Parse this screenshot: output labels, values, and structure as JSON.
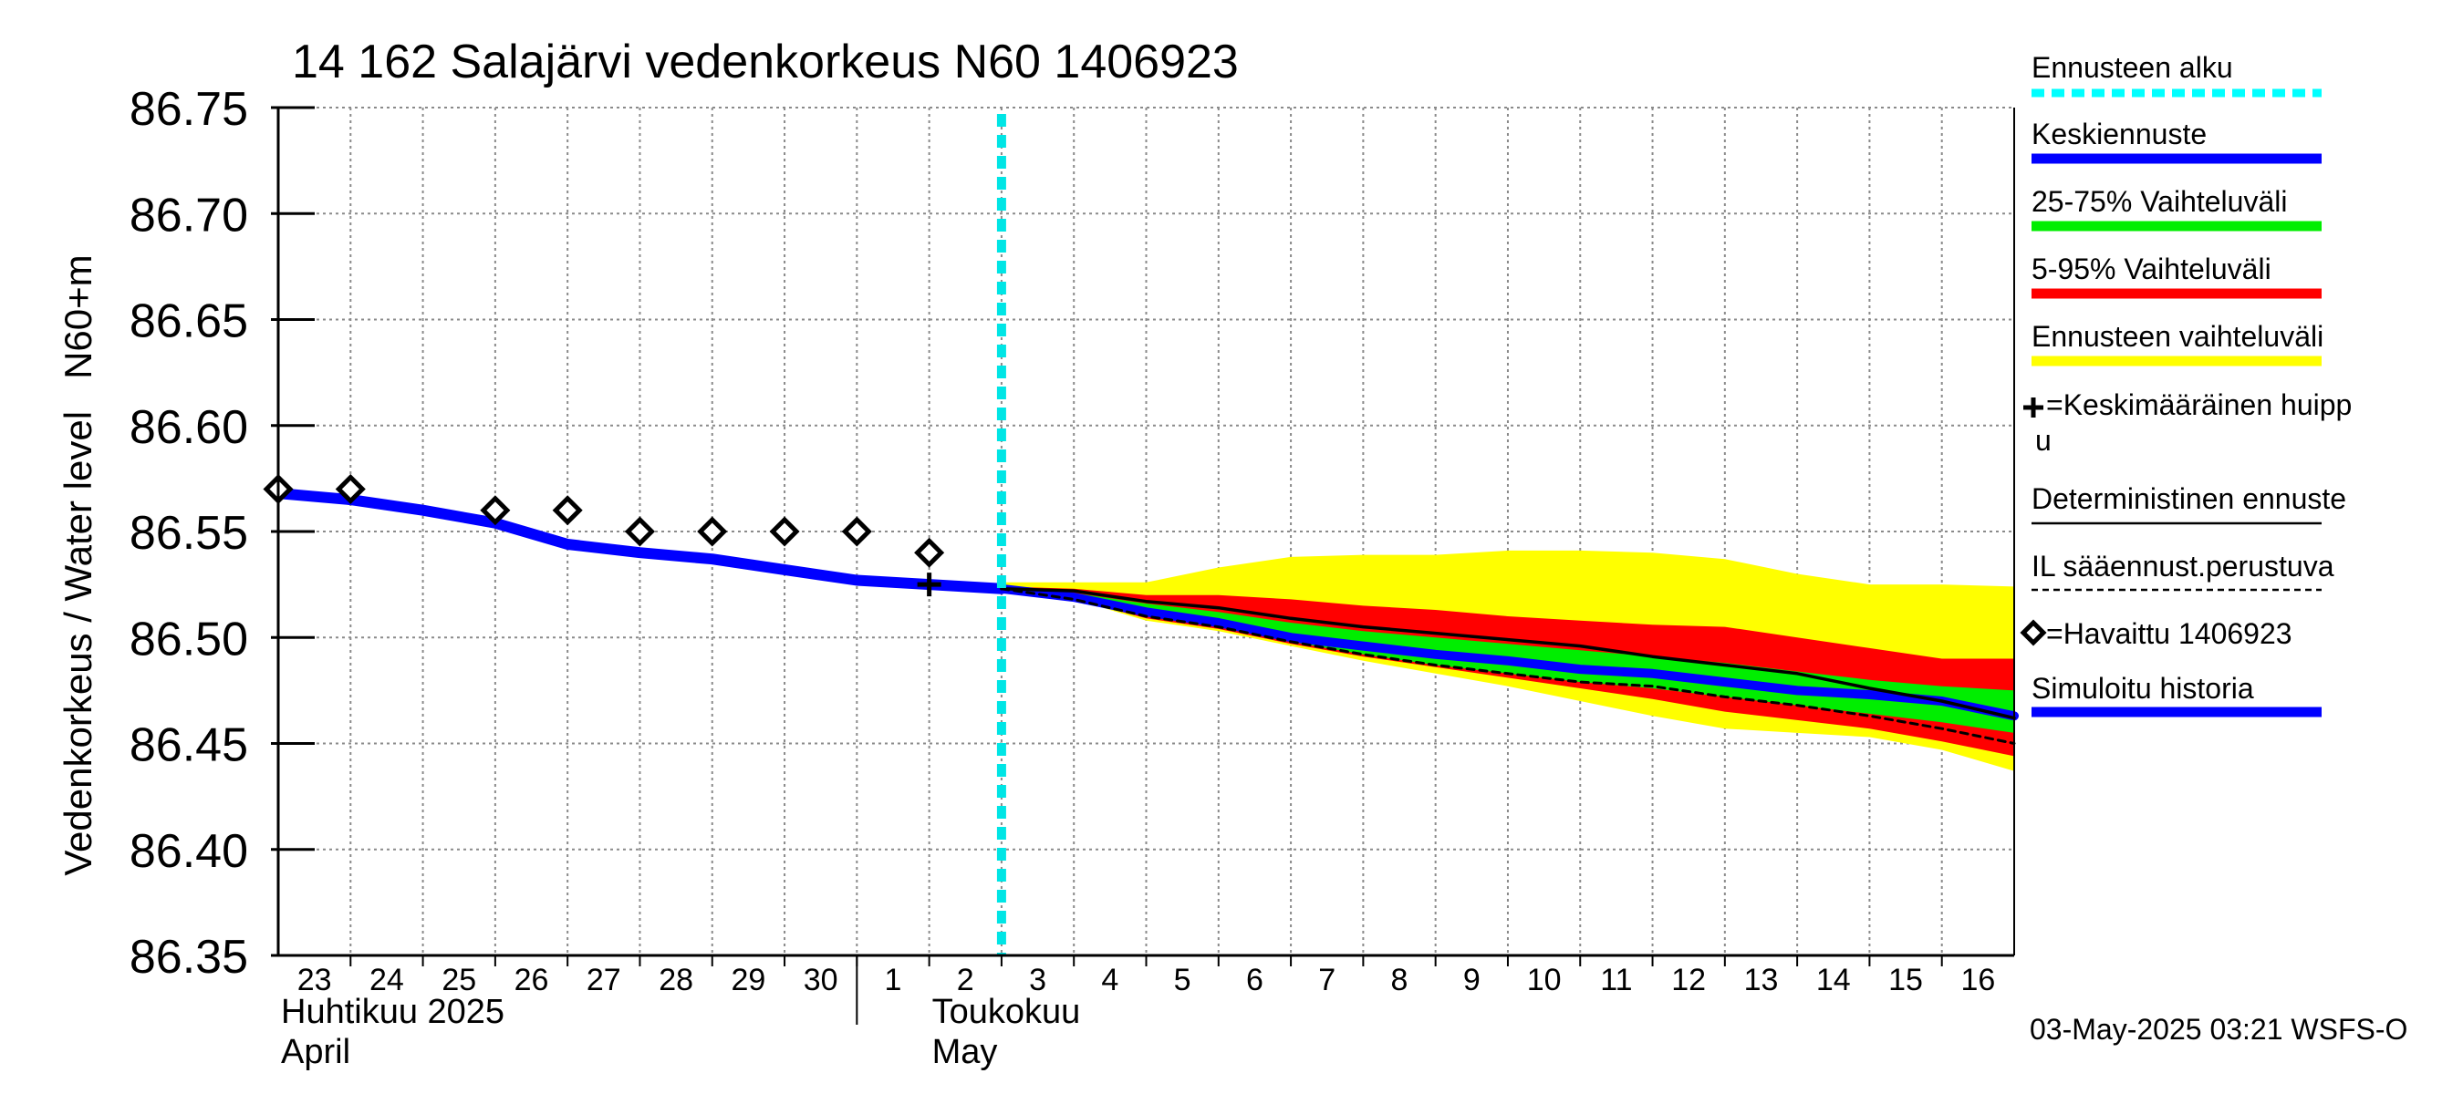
{
  "chart_data": {
    "type": "line",
    "title": "14 162 Salajärvi vedenkorkeus N60 1406923",
    "ylabel": "Vedenkorkeus / Water level   N60+m",
    "ylim": [
      86.35,
      86.75
    ],
    "yticks": [
      "86.35",
      "86.40",
      "86.45",
      "86.50",
      "86.55",
      "86.60",
      "86.65",
      "86.70",
      "86.75"
    ],
    "xlim": [
      0,
      24
    ],
    "x_tick_labels": [
      "23",
      "24",
      "25",
      "26",
      "27",
      "28",
      "29",
      "30",
      "1",
      "2",
      "3",
      "4",
      "5",
      "6",
      "7",
      "8",
      "9",
      "10",
      "11",
      "12",
      "13",
      "14",
      "15",
      "16"
    ],
    "month_labels": [
      {
        "fi": "Huhtikuu  2025",
        "en": "April",
        "x": 0
      },
      {
        "fi": "Toukokuu",
        "en": "May",
        "x": 9
      }
    ],
    "month_divider_x": 8,
    "forecast_start_x": 10,
    "timestamp": "03-May-2025 03:21 WSFS-O",
    "series": [
      {
        "name": "Simuloitu historia",
        "color": "#0000ff",
        "x": [
          0,
          1,
          2,
          3,
          4,
          5,
          6,
          7,
          8,
          9,
          10
        ],
        "y": [
          86.568,
          86.565,
          86.56,
          86.554,
          86.544,
          86.54,
          86.537,
          86.532,
          86.527,
          86.525,
          86.523
        ]
      },
      {
        "name": "Keskiennuste",
        "color": "#0000ff",
        "x": [
          10,
          11,
          12,
          13,
          14,
          15,
          16,
          17,
          18,
          19,
          20,
          21,
          22,
          23,
          24
        ],
        "y": [
          86.523,
          86.519,
          86.512,
          86.507,
          86.5,
          86.496,
          86.492,
          86.489,
          86.485,
          86.483,
          86.479,
          86.475,
          86.473,
          86.47,
          86.463
        ]
      },
      {
        "name": "Deterministinen ennuste",
        "color": "#000000",
        "x": [
          10,
          11,
          12,
          13,
          14,
          15,
          16,
          17,
          18,
          19,
          20,
          21,
          22,
          23,
          24
        ],
        "y": [
          86.523,
          86.522,
          86.517,
          86.514,
          86.509,
          86.505,
          86.502,
          86.499,
          86.496,
          86.491,
          86.487,
          86.483,
          86.476,
          86.47,
          86.462
        ]
      },
      {
        "name": "IL sääennust.perustuva",
        "color": "#000000",
        "x": [
          10,
          11,
          12,
          13,
          14,
          15,
          16,
          17,
          18,
          19,
          20,
          21,
          22,
          23,
          24
        ],
        "y": [
          86.523,
          86.518,
          86.51,
          86.505,
          86.498,
          86.492,
          86.487,
          86.483,
          86.479,
          86.477,
          86.472,
          86.468,
          86.463,
          86.457,
          86.45
        ]
      }
    ],
    "bands": [
      {
        "name": "Ennusteen vaihteluväli",
        "color": "#ffff00",
        "x": [
          10,
          11,
          12,
          13,
          14,
          15,
          16,
          17,
          18,
          19,
          20,
          21,
          22,
          23,
          24
        ],
        "upper": [
          86.526,
          86.526,
          86.526,
          86.533,
          86.538,
          86.539,
          86.539,
          86.541,
          86.541,
          86.54,
          86.537,
          86.53,
          86.525,
          86.525,
          86.524
        ],
        "lower": [
          86.523,
          86.518,
          86.508,
          86.503,
          86.496,
          86.489,
          86.483,
          86.477,
          86.47,
          86.463,
          86.457,
          86.455,
          86.453,
          86.447,
          86.437
        ]
      },
      {
        "name": "5-95% Vaihteluväli",
        "color": "#ff0000",
        "x": [
          10,
          11,
          12,
          13,
          14,
          15,
          16,
          17,
          18,
          19,
          20,
          21,
          22,
          23,
          24
        ],
        "upper": [
          86.524,
          86.523,
          86.52,
          86.52,
          86.518,
          86.515,
          86.513,
          86.51,
          86.508,
          86.506,
          86.505,
          86.5,
          86.495,
          86.49,
          86.49
        ],
        "lower": [
          86.523,
          86.518,
          86.509,
          86.504,
          86.497,
          86.491,
          86.486,
          86.481,
          86.476,
          86.471,
          86.465,
          86.461,
          86.457,
          86.451,
          86.444
        ]
      },
      {
        "name": "25-75% Vaihteluväli",
        "color": "#00ee00",
        "x": [
          10,
          11,
          12,
          13,
          14,
          15,
          16,
          17,
          18,
          19,
          20,
          21,
          22,
          23,
          24
        ],
        "upper": [
          86.523,
          86.521,
          86.516,
          86.512,
          86.507,
          86.503,
          86.5,
          86.497,
          86.494,
          86.491,
          86.488,
          86.484,
          86.48,
          86.477,
          86.475
        ],
        "lower": [
          86.523,
          86.518,
          86.51,
          86.505,
          86.498,
          86.492,
          86.487,
          86.483,
          86.479,
          86.476,
          86.472,
          86.468,
          86.464,
          86.46,
          86.455
        ]
      }
    ],
    "observed": {
      "name": "Havaittu 1406923",
      "x": [
        0,
        1,
        3,
        4,
        5,
        6,
        7,
        8,
        9
      ],
      "y": [
        86.57,
        86.57,
        86.56,
        86.56,
        86.55,
        86.55,
        86.55,
        86.55,
        86.54
      ]
    },
    "mean_peak": {
      "x": 9,
      "y": 86.525
    },
    "legend_position": "right",
    "legend": [
      {
        "label": "Ennusteen alku",
        "style": "dashed",
        "color": "#00ffff"
      },
      {
        "label": "Keskiennuste",
        "style": "solid",
        "color": "#0000ff"
      },
      {
        "label": "25-75% Vaihteluväli",
        "style": "solid",
        "color": "#00ee00"
      },
      {
        "label": "5-95% Vaihteluväli",
        "style": "solid",
        "color": "#ff0000"
      },
      {
        "label": "Ennusteen vaihteluväli",
        "style": "solid",
        "color": "#ffff00"
      },
      {
        "label": "=Keskimääräinen huipp",
        "label2": "u",
        "style": "plus",
        "color": "#000000"
      },
      {
        "label": "Deterministinen ennuste",
        "style": "thin",
        "color": "#000000"
      },
      {
        "label": "IL sääennust.perustuva",
        "style": "dotted",
        "color": "#000000"
      },
      {
        "label": "=Havaittu 1406923",
        "style": "diamond",
        "color": "#000000"
      },
      {
        "label": "Simuloitu historia",
        "style": "solid",
        "color": "#0000ff"
      }
    ]
  }
}
